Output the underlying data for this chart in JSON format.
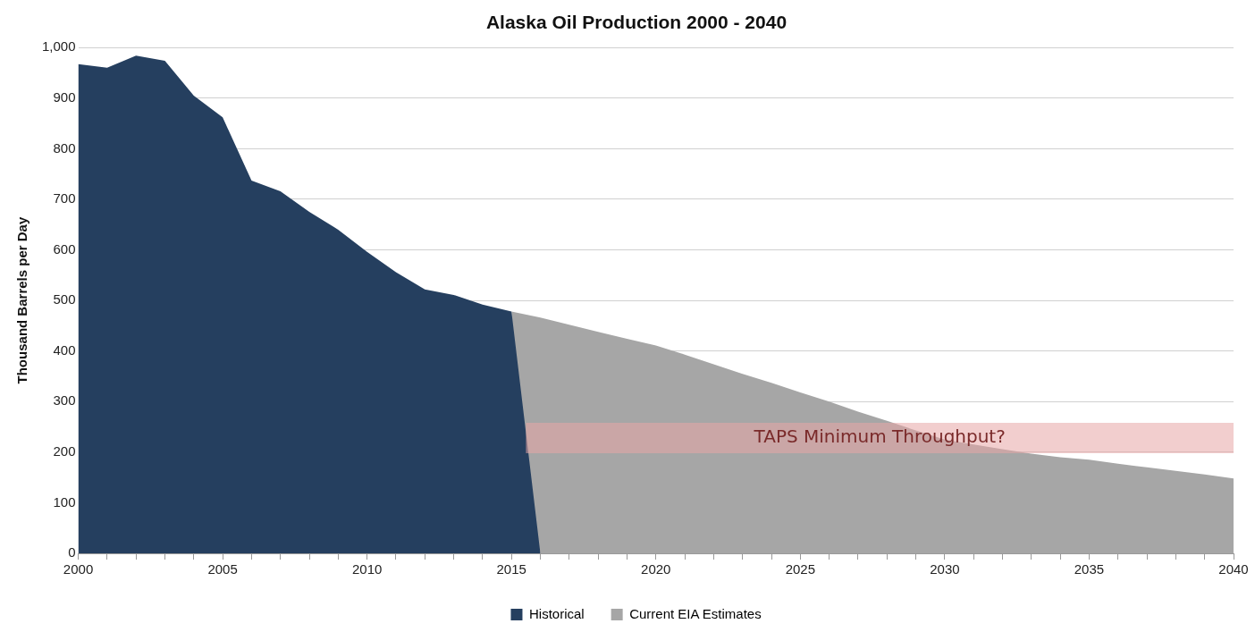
{
  "chart_data": {
    "type": "area",
    "title": "Alaska Oil Production 2000 - 2040",
    "ylabel": "Thousand Barrels per Day",
    "series": [
      {
        "name": "Historical",
        "color": "#253f5f",
        "x": [
          2000,
          2001,
          2002,
          2003,
          2004,
          2005,
          2006,
          2007,
          2008,
          2009,
          2010,
          2011,
          2012,
          2013,
          2014,
          2015,
          2016
        ],
        "values": [
          967,
          960,
          984,
          974,
          905,
          862,
          737,
          716,
          675,
          640,
          596,
          556,
          522,
          511,
          492,
          478,
          0
        ]
      },
      {
        "name": "Current EIA Estimates",
        "color": "#a6a6a6",
        "x": [
          2015,
          2016,
          2017,
          2018,
          2019,
          2020,
          2021,
          2022,
          2023,
          2024,
          2025,
          2026,
          2027,
          2028,
          2029,
          2030,
          2031,
          2032,
          2033,
          2034,
          2035,
          2036,
          2037,
          2038,
          2039,
          2040
        ],
        "values": [
          478,
          466,
          452,
          438,
          424,
          411,
          393,
          374,
          355,
          337,
          318,
          300,
          280,
          262,
          243,
          225,
          215,
          206,
          197,
          190,
          185,
          177,
          170,
          163,
          156,
          148
        ]
      }
    ],
    "xlim": [
      2000,
      2040
    ],
    "xticks": [
      2000,
      {
        "value": 2001,
        "label": null
      },
      {
        "value": 2002,
        "label": null
      },
      {
        "value": 2003,
        "label": null
      },
      {
        "value": 2004,
        "label": null
      },
      2005,
      {
        "value": 2006,
        "label": null
      },
      {
        "value": 2007,
        "label": null
      },
      {
        "value": 2008,
        "label": null
      },
      {
        "value": 2009,
        "label": null
      },
      2010,
      {
        "value": 2011,
        "label": null
      },
      {
        "value": 2012,
        "label": null
      },
      {
        "value": 2013,
        "label": null
      },
      {
        "value": 2014,
        "label": null
      },
      2015,
      {
        "value": 2016,
        "label": null
      },
      {
        "value": 2017,
        "label": null
      },
      {
        "value": 2018,
        "label": null
      },
      {
        "value": 2019,
        "label": null
      },
      2020,
      {
        "value": 2021,
        "label": null
      },
      {
        "value": 2022,
        "label": null
      },
      {
        "value": 2023,
        "label": null
      },
      {
        "value": 2024,
        "label": null
      },
      2025,
      {
        "value": 2026,
        "label": null
      },
      {
        "value": 2027,
        "label": null
      },
      {
        "value": 2028,
        "label": null
      },
      {
        "value": 2029,
        "label": null
      },
      2030,
      {
        "value": 2031,
        "label": null
      },
      {
        "value": 2032,
        "label": null
      },
      {
        "value": 2033,
        "label": null
      },
      {
        "value": 2034,
        "label": null
      },
      2035,
      {
        "value": 2036,
        "label": null
      },
      {
        "value": 2037,
        "label": null
      },
      {
        "value": 2038,
        "label": null
      },
      {
        "value": 2039,
        "label": null
      },
      2040
    ],
    "ylim": [
      0,
      1000
    ],
    "yticks": [
      0,
      100,
      200,
      300,
      400,
      500,
      600,
      700,
      800,
      900,
      {
        "value": 1000,
        "label": "1,000"
      }
    ],
    "bands": [
      {
        "axis": "y",
        "from": 198,
        "to": 258,
        "label": "TAPS Minimum Throughput?",
        "color": "#e8a5a5"
      }
    ],
    "grid": "y",
    "legend": "bottom"
  }
}
